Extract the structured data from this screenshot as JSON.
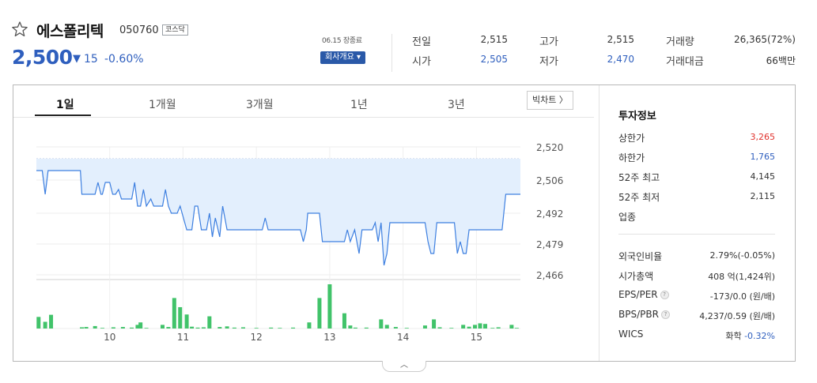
{
  "header": {
    "stock_name": "에스폴리텍",
    "stock_code": "050760",
    "market": "코스닥",
    "price": "2,500",
    "change_arrow": "▼",
    "change": "15",
    "change_rate": "-0.60%",
    "date_info": "06.15 장종료",
    "company_button": "회사개요 ▾",
    "icons": {
      "favorite": "star-outline-icon"
    }
  },
  "summary": {
    "prev_close_label": "전일",
    "prev_close": "2,515",
    "open_label": "시가",
    "open": "2,505",
    "high_label": "고가",
    "high": "2,515",
    "low_label": "저가",
    "low": "2,470",
    "volume_label": "거래량",
    "volume": "26,365(72%)",
    "amount_label": "거래대금",
    "amount": "66백만"
  },
  "tabs": [
    "1일",
    "1개월",
    "3개월",
    "1년",
    "3년"
  ],
  "active_tab": 0,
  "bigchart_label": "빅차트 〉",
  "invest": {
    "title": "투자정보",
    "items1": [
      {
        "label": "상한가",
        "value": "3,265",
        "color": "#e0312c"
      },
      {
        "label": "하한가",
        "value": "1,765",
        "color": "#2f5fbe"
      },
      {
        "label": "52주 최고",
        "value": "4,145",
        "color": "#333333"
      },
      {
        "label": "52주 최저",
        "value": "2,115",
        "color": "#333333"
      },
      {
        "label": "업종",
        "value": "",
        "color": "#333333"
      }
    ],
    "items2": [
      {
        "label": "외국인비율",
        "value": "2.79%(-0.05%)",
        "help": false
      },
      {
        "label": "시가총액",
        "value": "408 억(1,424위)",
        "help": false
      },
      {
        "label": "EPS/PER",
        "value": "-173/0.0 (원/배)",
        "help": true
      },
      {
        "label": "BPS/PBR",
        "value": "4,237/0.59 (원/배)",
        "help": true
      },
      {
        "label": "WICS",
        "value": "화학 ",
        "extra": "-0.32%",
        "help": false
      }
    ],
    "help_mark": "?"
  },
  "fold_label": "︿",
  "chart_data": {
    "type": "line",
    "x_ticks": [
      "10",
      "11",
      "12",
      "13",
      "14",
      "15"
    ],
    "y_ticks": [
      2520,
      2506,
      2492,
      2479,
      2466
    ],
    "ylim": [
      2466,
      2520
    ],
    "reference": 2515,
    "line_color": "#3d7fe0",
    "fill_color": "#e3effd",
    "volume_color": "#41c36a",
    "x_range": [
      9.0,
      15.6
    ],
    "prices": [
      [
        9.0,
        2510
      ],
      [
        9.08,
        2510
      ],
      [
        9.12,
        2500
      ],
      [
        9.16,
        2510
      ],
      [
        9.2,
        2510
      ],
      [
        9.6,
        2510
      ],
      [
        9.62,
        2500
      ],
      [
        9.8,
        2500
      ],
      [
        9.84,
        2505
      ],
      [
        9.88,
        2500
      ],
      [
        9.9,
        2500
      ],
      [
        9.94,
        2505
      ],
      [
        10.0,
        2505
      ],
      [
        10.04,
        2500
      ],
      [
        10.08,
        2500
      ],
      [
        10.12,
        2502
      ],
      [
        10.16,
        2498
      ],
      [
        10.3,
        2498
      ],
      [
        10.34,
        2505
      ],
      [
        10.38,
        2495
      ],
      [
        10.42,
        2495
      ],
      [
        10.46,
        2502
      ],
      [
        10.5,
        2495
      ],
      [
        10.56,
        2498
      ],
      [
        10.6,
        2495
      ],
      [
        10.72,
        2495
      ],
      [
        10.76,
        2502
      ],
      [
        10.8,
        2495
      ],
      [
        10.84,
        2492
      ],
      [
        10.92,
        2492
      ],
      [
        10.96,
        2495
      ],
      [
        11.05,
        2485
      ],
      [
        11.12,
        2485
      ],
      [
        11.16,
        2495
      ],
      [
        11.2,
        2495
      ],
      [
        11.25,
        2485
      ],
      [
        11.32,
        2485
      ],
      [
        11.36,
        2492
      ],
      [
        11.4,
        2482
      ],
      [
        11.44,
        2490
      ],
      [
        11.5,
        2482
      ],
      [
        11.54,
        2495
      ],
      [
        11.6,
        2485
      ],
      [
        12.08,
        2485
      ],
      [
        12.12,
        2490
      ],
      [
        12.16,
        2485
      ],
      [
        12.6,
        2485
      ],
      [
        12.64,
        2480
      ],
      [
        12.68,
        2485
      ],
      [
        12.7,
        2492
      ],
      [
        12.86,
        2492
      ],
      [
        12.9,
        2480
      ],
      [
        13.2,
        2480
      ],
      [
        13.24,
        2485
      ],
      [
        13.28,
        2480
      ],
      [
        13.34,
        2485
      ],
      [
        13.4,
        2475
      ],
      [
        13.44,
        2485
      ],
      [
        13.5,
        2485
      ],
      [
        13.58,
        2485
      ],
      [
        13.62,
        2488
      ],
      [
        13.66,
        2480
      ],
      [
        13.7,
        2488
      ],
      [
        13.74,
        2470
      ],
      [
        13.78,
        2475
      ],
      [
        13.82,
        2488
      ],
      [
        14.3,
        2488
      ],
      [
        14.34,
        2480
      ],
      [
        14.38,
        2475
      ],
      [
        14.42,
        2475
      ],
      [
        14.46,
        2488
      ],
      [
        14.7,
        2488
      ],
      [
        14.74,
        2475
      ],
      [
        14.78,
        2480
      ],
      [
        14.82,
        2475
      ],
      [
        14.86,
        2475
      ],
      [
        14.9,
        2485
      ],
      [
        15.35,
        2485
      ],
      [
        15.4,
        2500
      ],
      [
        15.6,
        2500
      ]
    ],
    "volumes": [
      [
        9.03,
        38
      ],
      [
        9.12,
        22
      ],
      [
        9.2,
        45
      ],
      [
        9.62,
        4
      ],
      [
        9.68,
        5
      ],
      [
        9.8,
        8
      ],
      [
        9.9,
        2
      ],
      [
        10.05,
        4
      ],
      [
        10.18,
        5
      ],
      [
        10.3,
        3
      ],
      [
        10.38,
        12
      ],
      [
        10.42,
        20
      ],
      [
        10.5,
        2
      ],
      [
        10.72,
        12
      ],
      [
        10.8,
        5
      ],
      [
        10.88,
        100
      ],
      [
        10.96,
        70
      ],
      [
        11.05,
        46
      ],
      [
        11.12,
        6
      ],
      [
        11.2,
        3
      ],
      [
        11.28,
        4
      ],
      [
        11.36,
        40
      ],
      [
        11.5,
        5
      ],
      [
        11.6,
        7
      ],
      [
        11.7,
        3
      ],
      [
        11.82,
        4
      ],
      [
        12.0,
        2
      ],
      [
        12.2,
        3
      ],
      [
        12.32,
        2
      ],
      [
        12.5,
        3
      ],
      [
        12.72,
        20
      ],
      [
        12.86,
        100
      ],
      [
        13.0,
        145
      ],
      [
        13.2,
        50
      ],
      [
        13.28,
        10
      ],
      [
        13.35,
        3
      ],
      [
        13.5,
        3
      ],
      [
        13.7,
        30
      ],
      [
        13.78,
        12
      ],
      [
        13.9,
        5
      ],
      [
        14.05,
        2
      ],
      [
        14.3,
        10
      ],
      [
        14.42,
        30
      ],
      [
        14.5,
        4
      ],
      [
        14.66,
        2
      ],
      [
        14.82,
        12
      ],
      [
        14.9,
        6
      ],
      [
        14.98,
        12
      ],
      [
        15.05,
        17
      ],
      [
        15.12,
        15
      ],
      [
        15.22,
        2
      ],
      [
        15.3,
        4
      ],
      [
        15.48,
        12
      ],
      [
        15.55,
        2
      ]
    ]
  }
}
